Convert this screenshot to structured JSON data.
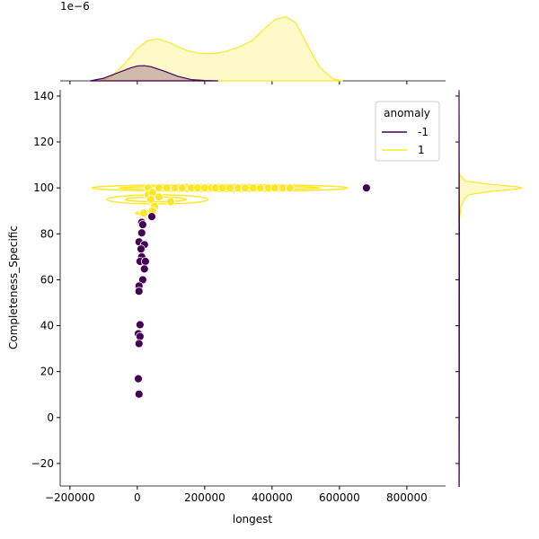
{
  "chart_data": {
    "type": "scatter",
    "xlabel": "longest",
    "ylabel": "Completeness_Specific",
    "xlim": [
      -229000,
      915000
    ],
    "ylim": [
      -29.8,
      142.7
    ],
    "xticks": [
      -200000,
      0,
      200000,
      400000,
      600000,
      800000
    ],
    "xtick_labels": [
      "−200000",
      "0",
      "200000",
      "400000",
      "600000",
      "800000"
    ],
    "yticks": [
      -20,
      0,
      20,
      40,
      60,
      80,
      100,
      120,
      140
    ],
    "ytick_labels": [
      "−20",
      "0",
      "20",
      "40",
      "60",
      "80",
      "100",
      "120",
      "140"
    ],
    "top_marginal_offset_label": "1e−6",
    "legend": {
      "title": "anomaly",
      "placement": "top-right",
      "entries": [
        {
          "label": "-1",
          "color": "#440154"
        },
        {
          "label": "1",
          "color": "#fde725"
        }
      ]
    },
    "series": [
      {
        "name": "-1",
        "color": "#440154",
        "points": [
          [
            680000,
            100
          ],
          [
            43000,
            87.5
          ],
          [
            13000,
            85
          ],
          [
            16000,
            84
          ],
          [
            13000,
            80.4
          ],
          [
            5000,
            76.5
          ],
          [
            21000,
            75.3
          ],
          [
            11000,
            73.4
          ],
          [
            13000,
            70
          ],
          [
            8000,
            68
          ],
          [
            24000,
            68
          ],
          [
            21000,
            64.7
          ],
          [
            16000,
            60
          ],
          [
            5000,
            57.3
          ],
          [
            5000,
            55
          ],
          [
            8000,
            40.4
          ],
          [
            3000,
            36.5
          ],
          [
            8000,
            35.3
          ],
          [
            5000,
            32.2
          ],
          [
            3000,
            16.9
          ],
          [
            5000,
            10.2
          ]
        ]
      },
      {
        "name": "1",
        "color": "#fde725",
        "points": [
          [
            32000,
            100
          ],
          [
            64000,
            100
          ],
          [
            88000,
            100
          ],
          [
            112000,
            100
          ],
          [
            133000,
            100
          ],
          [
            160000,
            100
          ],
          [
            179000,
            100
          ],
          [
            200000,
            100
          ],
          [
            221000,
            100
          ],
          [
            232000,
            100
          ],
          [
            253000,
            100
          ],
          [
            275000,
            100
          ],
          [
            299000,
            100
          ],
          [
            320000,
            100
          ],
          [
            344000,
            100
          ],
          [
            365000,
            100
          ],
          [
            389000,
            100
          ],
          [
            408000,
            100
          ],
          [
            432000,
            100
          ],
          [
            453000,
            100
          ],
          [
            32000,
            97
          ],
          [
            45000,
            98
          ],
          [
            64000,
            96
          ],
          [
            40000,
            95
          ],
          [
            99000,
            94
          ],
          [
            51000,
            92
          ],
          [
            45000,
            90
          ],
          [
            19000,
            89
          ]
        ]
      }
    ],
    "contours_1": [
      {
        "cx": 245000,
        "cy": 100,
        "rx": 380000,
        "ry": 1.5
      },
      {
        "cx": 245000,
        "cy": 100,
        "rx": 300000,
        "ry": 0.8
      },
      {
        "cx": 60000,
        "cy": 95,
        "rx": 150000,
        "ry": 2
      },
      {
        "cx": 55000,
        "cy": 95,
        "rx": 90000,
        "ry": 1
      },
      {
        "cx": 20000,
        "cy": 89,
        "rx": 25000,
        "ry": 0.6
      }
    ],
    "x_density_ylim": [
      0,
      1.25
    ],
    "x_density": [
      {
        "name": "-1",
        "color": "#440154",
        "x": [
          -140000,
          -100000,
          -60000,
          -20000,
          0,
          20000,
          40000,
          80000,
          120000,
          160000,
          200000,
          240000
        ],
        "y": [
          0,
          0.04,
          0.12,
          0.2,
          0.23,
          0.235,
          0.22,
          0.15,
          0.07,
          0.02,
          0.005,
          0
        ]
      },
      {
        "name": "1",
        "color": "#fde725",
        "x": [
          -110000,
          -80000,
          -40000,
          0,
          30000,
          60000,
          100000,
          140000,
          180000,
          220000,
          260000,
          300000,
          340000,
          380000,
          410000,
          440000,
          470000,
          500000,
          540000,
          580000,
          610000
        ],
        "y": [
          0,
          0.05,
          0.25,
          0.5,
          0.62,
          0.65,
          0.58,
          0.48,
          0.43,
          0.42,
          0.45,
          0.52,
          0.62,
          0.82,
          0.95,
          0.99,
          0.9,
          0.6,
          0.22,
          0.03,
          0
        ]
      }
    ],
    "y_density_xlim": [
      0,
      1.1
    ],
    "y_density": [
      {
        "name": "-1",
        "color": "#440154",
        "y": [
          -30,
          0,
          40,
          80,
          100,
          142
        ],
        "x": [
          0.002,
          0.004,
          0.005,
          0.006,
          0.003,
          0
        ]
      },
      {
        "name": "1",
        "color": "#fde725",
        "y": [
          85,
          92,
          95,
          97,
          98.5,
          99.5,
          100,
          100.5,
          101.5,
          103,
          106
        ],
        "x": [
          0,
          0.03,
          0.08,
          0.15,
          0.5,
          0.9,
          0.98,
          0.9,
          0.5,
          0.1,
          0
        ]
      }
    ]
  }
}
